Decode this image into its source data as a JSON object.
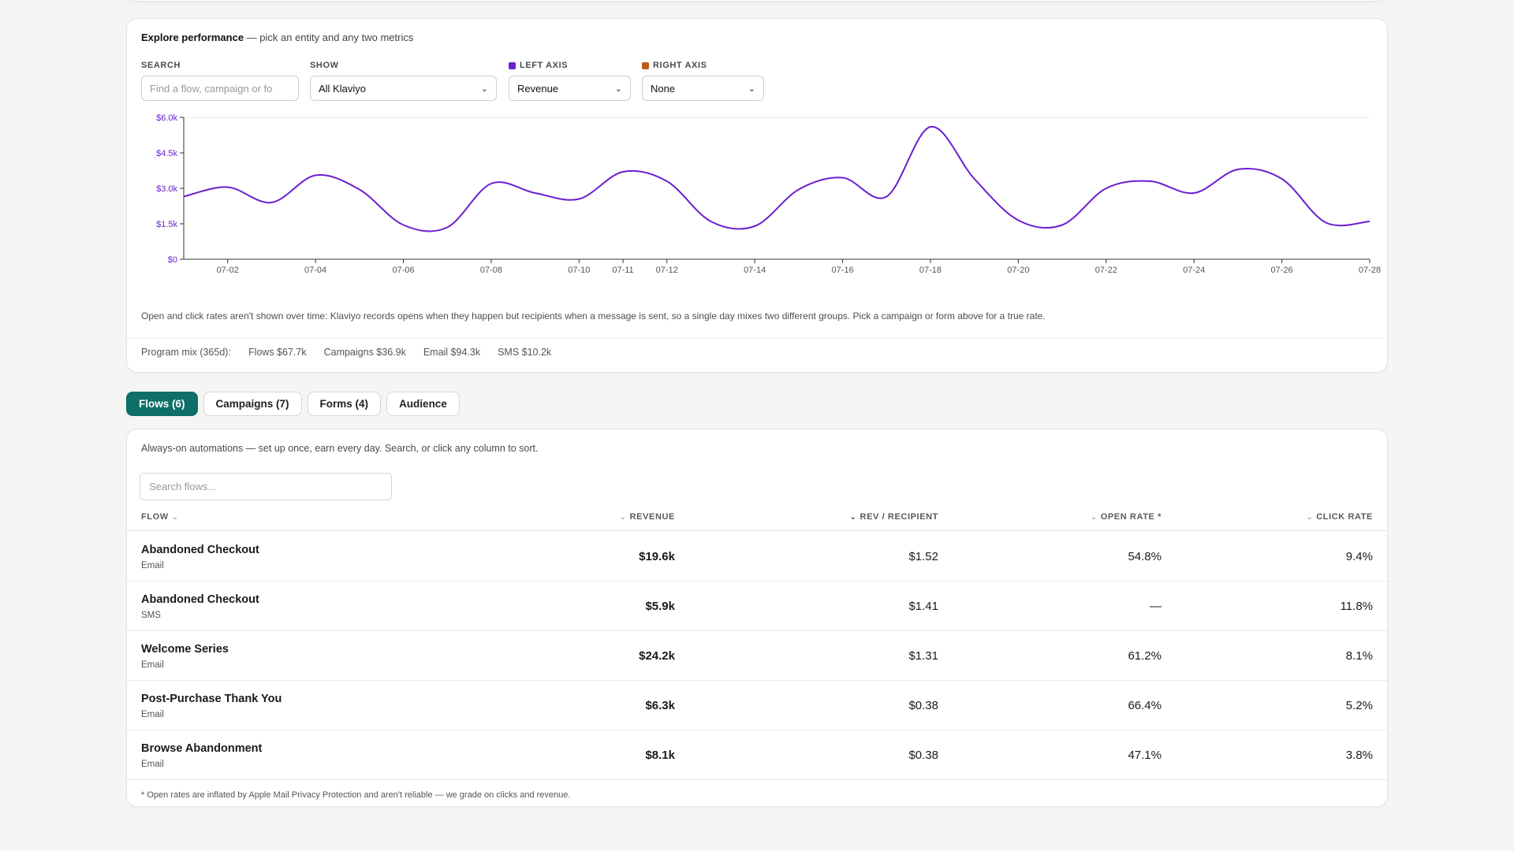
{
  "explore": {
    "title_bold": "Explore performance",
    "title_rest": " — pick an entity and any two metrics",
    "search_label": "SEARCH",
    "search_placeholder": "Find a flow, campaign or fo",
    "show_label": "SHOW",
    "show_value": "All Klaviyo",
    "left_axis_label": "LEFT AXIS",
    "left_axis_value": "Revenue",
    "right_axis_label": "RIGHT AXIS",
    "right_axis_value": "None",
    "note": "Open and click rates aren't shown over time: Klaviyo records opens when they happen but recipients when a message is sent, so a single day mixes two different groups. Pick a campaign or form above for a true rate.",
    "mix": {
      "label": "Program mix (365d):",
      "flows": "Flows $67.7k",
      "campaigns": "Campaigns $36.9k",
      "email": "Email $94.3k",
      "sms": "SMS $10.2k"
    }
  },
  "colors": {
    "left_axis": "#6a1fd1",
    "right_axis": "#c05a12",
    "accent": "#0d6f67"
  },
  "chart_data": {
    "type": "line",
    "x": [
      "07-01",
      "07-02",
      "07-03",
      "07-04",
      "07-05",
      "07-06",
      "07-07",
      "07-08",
      "07-09",
      "07-10",
      "07-11",
      "07-12",
      "07-13",
      "07-14",
      "07-15",
      "07-16",
      "07-17",
      "07-18",
      "07-19",
      "07-20",
      "07-21",
      "07-22",
      "07-23",
      "07-24",
      "07-25",
      "07-26",
      "07-27",
      "07-28"
    ],
    "x_ticks": [
      "07-02",
      "07-04",
      "07-06",
      "07-08",
      "07-10",
      "07-11",
      "07-12",
      "07-14",
      "07-16",
      "07-18",
      "07-20",
      "07-22",
      "07-24",
      "07-26",
      "07-28"
    ],
    "series": [
      {
        "name": "Revenue",
        "values": [
          2650,
          3050,
          2400,
          3550,
          2950,
          1450,
          1350,
          3200,
          2800,
          2550,
          3700,
          3300,
          1600,
          1400,
          2950,
          3450,
          2650,
          5600,
          3400,
          1650,
          1450,
          3000,
          3300,
          2800,
          3800,
          3400,
          1550,
          1600
        ]
      }
    ],
    "y_ticks": [
      "$0",
      "$1.5k",
      "$3.0k",
      "$4.5k",
      "$6.0k"
    ],
    "ylim": [
      0,
      6000
    ],
    "legend": "bottom-center",
    "grid": false
  },
  "tabs": [
    {
      "label": "Flows (6)"
    },
    {
      "label": "Campaigns (7)"
    },
    {
      "label": "Forms (4)"
    },
    {
      "label": "Audience"
    }
  ],
  "flows": {
    "description": "Always-on automations — set up once, earn every day. Search, or click any column to sort.",
    "search_placeholder": "Search flows...",
    "headers": {
      "flow": "FLOW",
      "revenue": "REVENUE",
      "rev_per_recipient": "REV / RECIPIENT",
      "open_rate": "OPEN RATE *",
      "click_rate": "CLICK RATE"
    },
    "rows": [
      {
        "name": "Abandoned Checkout",
        "channel": "Email",
        "revenue": "$19.6k",
        "rpr": "$1.52",
        "open": "54.8%",
        "click": "9.4%"
      },
      {
        "name": "Abandoned Checkout",
        "channel": "SMS",
        "revenue": "$5.9k",
        "rpr": "$1.41",
        "open": "—",
        "click": "11.8%"
      },
      {
        "name": "Welcome Series",
        "channel": "Email",
        "revenue": "$24.2k",
        "rpr": "$1.31",
        "open": "61.2%",
        "click": "8.1%"
      },
      {
        "name": "Post-Purchase Thank You",
        "channel": "Email",
        "revenue": "$6.3k",
        "rpr": "$0.38",
        "open": "66.4%",
        "click": "5.2%"
      },
      {
        "name": "Browse Abandonment",
        "channel": "Email",
        "revenue": "$8.1k",
        "rpr": "$0.38",
        "open": "47.1%",
        "click": "3.8%"
      }
    ],
    "footnote": "* Open rates are inflated by Apple Mail Privacy Protection and aren't reliable — we grade on clicks and revenue."
  }
}
